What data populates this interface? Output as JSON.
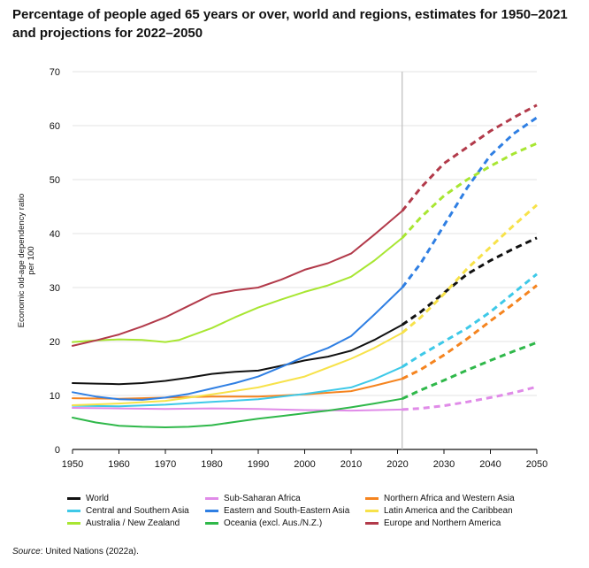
{
  "title": "Percentage of people aged 65 years or over, world and regions, estimates for 1950–2021 and projections for 2022–2050",
  "source": {
    "label": "Source",
    "text": ": United Nations (2022a)."
  },
  "chart_data": {
    "type": "line",
    "ylabel": "Economic old-age dependency ratio per 100",
    "ylabel_lines": [
      "Economic old-age dependency ratio",
      "per 100"
    ],
    "xlim": [
      1950,
      2050
    ],
    "ylim": [
      0,
      70
    ],
    "x_ticks": [
      1950,
      1960,
      1970,
      1980,
      1990,
      2000,
      2010,
      2020,
      2030,
      2040,
      2050
    ],
    "y_ticks": [
      0,
      10,
      20,
      30,
      40,
      50,
      60,
      70
    ],
    "projection_start": 2021,
    "grid": "horizontal",
    "legend_position": "bottom",
    "series": [
      {
        "name": "World",
        "color": "#111111",
        "points": [
          [
            1950,
            12.3
          ],
          [
            1955,
            12.2
          ],
          [
            1960,
            12.1
          ],
          [
            1965,
            12.3
          ],
          [
            1970,
            12.7
          ],
          [
            1975,
            13.3
          ],
          [
            1980,
            14.0
          ],
          [
            1985,
            14.4
          ],
          [
            1990,
            14.6
          ],
          [
            1995,
            15.5
          ],
          [
            2000,
            16.5
          ],
          [
            2005,
            17.2
          ],
          [
            2010,
            18.3
          ],
          [
            2015,
            20.3
          ],
          [
            2021,
            23.1
          ],
          [
            2025,
            25.5
          ],
          [
            2030,
            29.0
          ],
          [
            2035,
            32.5
          ],
          [
            2040,
            35.0
          ],
          [
            2045,
            37.2
          ],
          [
            2050,
            39.2
          ]
        ]
      },
      {
        "name": "Sub-Saharan Africa",
        "color": "#e08be8",
        "points": [
          [
            1950,
            7.7
          ],
          [
            1960,
            7.6
          ],
          [
            1970,
            7.5
          ],
          [
            1980,
            7.6
          ],
          [
            1990,
            7.5
          ],
          [
            2000,
            7.3
          ],
          [
            2010,
            7.2
          ],
          [
            2021,
            7.4
          ],
          [
            2025,
            7.6
          ],
          [
            2030,
            8.1
          ],
          [
            2035,
            8.8
          ],
          [
            2040,
            9.6
          ],
          [
            2045,
            10.5
          ],
          [
            2050,
            11.6
          ]
        ]
      },
      {
        "name": "Northern Africa and Western Asia",
        "color": "#f5841f",
        "points": [
          [
            1950,
            9.5
          ],
          [
            1960,
            9.4
          ],
          [
            1970,
            9.6
          ],
          [
            1980,
            9.8
          ],
          [
            1990,
            9.8
          ],
          [
            2000,
            10.2
          ],
          [
            2010,
            10.8
          ],
          [
            2015,
            11.8
          ],
          [
            2021,
            13.1
          ],
          [
            2025,
            14.8
          ],
          [
            2030,
            17.5
          ],
          [
            2035,
            20.5
          ],
          [
            2040,
            23.8
          ],
          [
            2045,
            27.0
          ],
          [
            2050,
            30.4
          ]
        ]
      },
      {
        "name": "Central and Southern Asia",
        "color": "#3ec9e8",
        "points": [
          [
            1950,
            8.1
          ],
          [
            1960,
            8.0
          ],
          [
            1970,
            8.3
          ],
          [
            1980,
            8.8
          ],
          [
            1990,
            9.3
          ],
          [
            2000,
            10.3
          ],
          [
            2010,
            11.5
          ],
          [
            2015,
            13.0
          ],
          [
            2021,
            15.3
          ],
          [
            2025,
            17.5
          ],
          [
            2030,
            20.0
          ],
          [
            2035,
            22.5
          ],
          [
            2040,
            25.5
          ],
          [
            2045,
            29.0
          ],
          [
            2050,
            32.5
          ]
        ]
      },
      {
        "name": "Eastern and South-Eastern Asia",
        "color": "#2f7fe3",
        "points": [
          [
            1950,
            10.6
          ],
          [
            1955,
            9.8
          ],
          [
            1960,
            9.3
          ],
          [
            1965,
            9.2
          ],
          [
            1970,
            9.6
          ],
          [
            1975,
            10.3
          ],
          [
            1980,
            11.3
          ],
          [
            1985,
            12.3
          ],
          [
            1990,
            13.5
          ],
          [
            1995,
            15.3
          ],
          [
            2000,
            17.2
          ],
          [
            2005,
            18.8
          ],
          [
            2010,
            21.0
          ],
          [
            2015,
            25.0
          ],
          [
            2021,
            30.0
          ],
          [
            2025,
            34.5
          ],
          [
            2030,
            41.5
          ],
          [
            2035,
            48.5
          ],
          [
            2040,
            54.5
          ],
          [
            2045,
            58.5
          ],
          [
            2050,
            61.5
          ]
        ]
      },
      {
        "name": "Latin America and the Caribbean",
        "color": "#f7e24a",
        "points": [
          [
            1950,
            8.2
          ],
          [
            1960,
            8.5
          ],
          [
            1970,
            9.0
          ],
          [
            1980,
            10.2
          ],
          [
            1990,
            11.5
          ],
          [
            2000,
            13.5
          ],
          [
            2010,
            16.8
          ],
          [
            2015,
            18.8
          ],
          [
            2021,
            21.6
          ],
          [
            2025,
            24.5
          ],
          [
            2030,
            28.8
          ],
          [
            2035,
            33.5
          ],
          [
            2040,
            37.5
          ],
          [
            2045,
            41.5
          ],
          [
            2050,
            45.3
          ]
        ]
      },
      {
        "name": "Australia / New Zealand",
        "color": "#a8e632",
        "points": [
          [
            1950,
            19.9
          ],
          [
            1955,
            20.2
          ],
          [
            1960,
            20.4
          ],
          [
            1965,
            20.3
          ],
          [
            1970,
            19.9
          ],
          [
            1973,
            20.3
          ],
          [
            1980,
            22.5
          ],
          [
            1985,
            24.5
          ],
          [
            1990,
            26.3
          ],
          [
            1995,
            27.8
          ],
          [
            2000,
            29.2
          ],
          [
            2005,
            30.4
          ],
          [
            2010,
            32.0
          ],
          [
            2015,
            35.0
          ],
          [
            2021,
            39.2
          ],
          [
            2025,
            43.0
          ],
          [
            2030,
            47.0
          ],
          [
            2035,
            50.0
          ],
          [
            2040,
            52.5
          ],
          [
            2045,
            54.8
          ],
          [
            2050,
            56.7
          ]
        ]
      },
      {
        "name": "Oceania (excl. Aus./N.Z.)",
        "color": "#2fb84a",
        "points": [
          [
            1950,
            5.9
          ],
          [
            1955,
            5.0
          ],
          [
            1960,
            4.4
          ],
          [
            1965,
            4.2
          ],
          [
            1970,
            4.1
          ],
          [
            1975,
            4.2
          ],
          [
            1980,
            4.5
          ],
          [
            1985,
            5.1
          ],
          [
            1990,
            5.7
          ],
          [
            1995,
            6.2
          ],
          [
            2000,
            6.7
          ],
          [
            2005,
            7.2
          ],
          [
            2010,
            7.8
          ],
          [
            2015,
            8.5
          ],
          [
            2021,
            9.4
          ],
          [
            2025,
            11.0
          ],
          [
            2030,
            12.8
          ],
          [
            2035,
            14.7
          ],
          [
            2040,
            16.5
          ],
          [
            2045,
            18.2
          ],
          [
            2050,
            19.8
          ]
        ]
      },
      {
        "name": "Europe and Northern America",
        "color": "#b23a4a",
        "points": [
          [
            1950,
            19.2
          ],
          [
            1955,
            20.2
          ],
          [
            1960,
            21.3
          ],
          [
            1965,
            22.8
          ],
          [
            1970,
            24.5
          ],
          [
            1975,
            26.6
          ],
          [
            1980,
            28.7
          ],
          [
            1985,
            29.5
          ],
          [
            1990,
            30.0
          ],
          [
            1995,
            31.5
          ],
          [
            2000,
            33.3
          ],
          [
            2005,
            34.5
          ],
          [
            2010,
            36.3
          ],
          [
            2015,
            39.8
          ],
          [
            2021,
            44.2
          ],
          [
            2025,
            48.5
          ],
          [
            2030,
            53.0
          ],
          [
            2035,
            56.0
          ],
          [
            2040,
            59.0
          ],
          [
            2045,
            61.5
          ],
          [
            2050,
            63.8
          ]
        ]
      }
    ]
  }
}
